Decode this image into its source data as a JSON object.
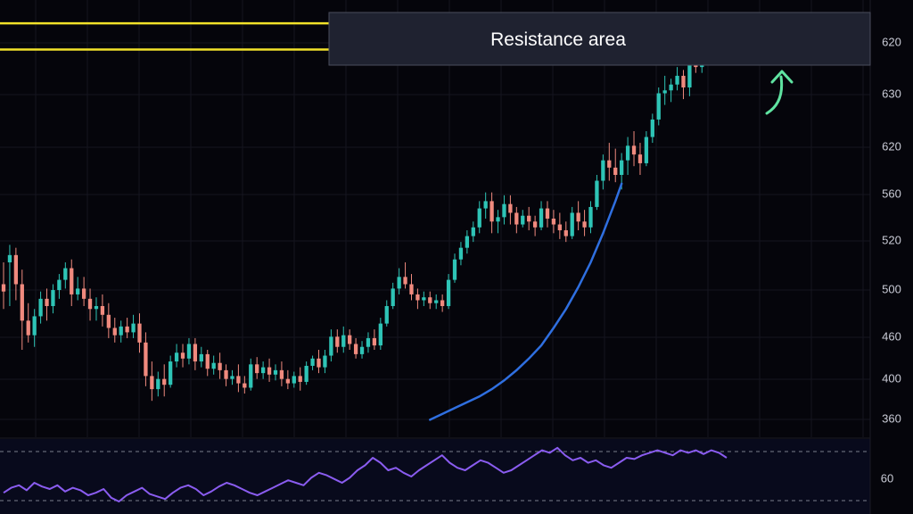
{
  "chart_data": [
    {
      "type": "candlestick",
      "title": "",
      "xlabel": "",
      "ylabel": "",
      "price_ticks": [
        620,
        630,
        620,
        560,
        520,
        500,
        460,
        400,
        360
      ],
      "resistance_levels": [
        634,
        616
      ],
      "annotation": "Resistance area",
      "colors": {
        "up": "#2ec4b6",
        "down": "#f08a7e",
        "resistance": "#f2e22a",
        "trend": "#2f6fe0",
        "arrow": "#5fe3a1",
        "background": "#05050b",
        "grid": "#15151f"
      },
      "candles": [
        [
          455,
          470,
          450,
          438
        ],
        [
          470,
          482,
          475,
          440
        ],
        [
          475,
          480,
          455,
          444
        ],
        [
          455,
          465,
          430,
          410
        ],
        [
          430,
          442,
          420,
          415
        ],
        [
          420,
          438,
          433,
          412
        ],
        [
          433,
          450,
          445,
          428
        ],
        [
          445,
          452,
          440,
          430
        ],
        [
          440,
          455,
          451,
          435
        ],
        [
          451,
          462,
          458,
          445
        ],
        [
          458,
          470,
          466,
          452
        ],
        [
          466,
          472,
          448,
          440
        ],
        [
          448,
          460,
          452,
          444
        ],
        [
          452,
          460,
          445,
          440
        ],
        [
          445,
          452,
          438,
          430
        ],
        [
          438,
          446,
          440,
          430
        ],
        [
          440,
          448,
          434,
          426
        ],
        [
          434,
          442,
          425,
          418
        ],
        [
          425,
          432,
          420,
          415
        ],
        [
          420,
          430,
          426,
          415
        ],
        [
          426,
          432,
          422,
          418
        ],
        [
          422,
          434,
          428,
          418
        ],
        [
          428,
          435,
          415,
          408
        ],
        [
          415,
          422,
          392,
          385
        ],
        [
          392,
          402,
          383,
          375
        ],
        [
          383,
          395,
          390,
          378
        ],
        [
          390,
          400,
          386,
          378
        ],
        [
          386,
          406,
          402,
          384
        ],
        [
          402,
          414,
          408,
          398
        ],
        [
          408,
          414,
          404,
          398
        ],
        [
          404,
          418,
          414,
          400
        ],
        [
          414,
          418,
          402,
          396
        ],
        [
          402,
          412,
          407,
          398
        ],
        [
          407,
          410,
          397,
          392
        ],
        [
          397,
          406,
          401,
          393
        ],
        [
          401,
          408,
          396,
          390
        ],
        [
          396,
          400,
          390,
          385
        ],
        [
          390,
          396,
          392,
          386
        ],
        [
          392,
          400,
          387,
          381
        ],
        [
          387,
          392,
          384,
          380
        ],
        [
          384,
          404,
          400,
          382
        ],
        [
          400,
          405,
          394,
          390
        ],
        [
          394,
          402,
          398,
          390
        ],
        [
          398,
          404,
          393,
          388
        ],
        [
          393,
          400,
          396,
          389
        ],
        [
          396,
          402,
          390,
          385
        ],
        [
          390,
          396,
          387,
          383
        ],
        [
          387,
          395,
          392,
          384
        ],
        [
          392,
          398,
          388,
          382
        ],
        [
          388,
          402,
          399,
          386
        ],
        [
          399,
          406,
          404,
          396
        ],
        [
          404,
          410,
          398,
          394
        ],
        [
          398,
          410,
          406,
          394
        ],
        [
          406,
          424,
          419,
          402
        ],
        [
          419,
          424,
          412,
          408
        ],
        [
          412,
          426,
          420,
          408
        ],
        [
          420,
          424,
          414,
          410
        ],
        [
          414,
          418,
          407,
          404
        ],
        [
          407,
          416,
          412,
          404
        ],
        [
          412,
          422,
          418,
          408
        ],
        [
          418,
          424,
          413,
          410
        ],
        [
          413,
          432,
          428,
          410
        ],
        [
          428,
          444,
          440,
          426
        ],
        [
          440,
          456,
          452,
          438
        ],
        [
          452,
          466,
          460,
          448
        ],
        [
          460,
          470,
          455,
          452
        ],
        [
          455,
          462,
          448,
          444
        ],
        [
          448,
          452,
          444,
          438
        ],
        [
          444,
          450,
          446,
          440
        ],
        [
          446,
          450,
          442,
          438
        ],
        [
          442,
          448,
          444,
          438
        ],
        [
          444,
          448,
          440,
          436
        ],
        [
          440,
          462,
          458,
          438
        ],
        [
          458,
          476,
          472,
          456
        ],
        [
          472,
          484,
          480,
          468
        ],
        [
          480,
          492,
          488,
          476
        ],
        [
          488,
          498,
          494,
          484
        ],
        [
          494,
          512,
          507,
          490
        ],
        [
          507,
          518,
          512,
          500
        ],
        [
          512,
          518,
          498,
          490
        ],
        [
          498,
          506,
          501,
          490
        ],
        [
          501,
          516,
          510,
          496
        ],
        [
          510,
          516,
          504,
          496
        ],
        [
          504,
          508,
          496,
          490
        ],
        [
          496,
          506,
          502,
          494
        ],
        [
          502,
          508,
          498,
          492
        ],
        [
          498,
          502,
          494,
          488
        ],
        [
          494,
          512,
          507,
          492
        ],
        [
          507,
          512,
          500,
          494
        ],
        [
          500,
          506,
          496,
          490
        ],
        [
          496,
          504,
          492,
          486
        ],
        [
          492,
          498,
          488,
          484
        ],
        [
          488,
          508,
          504,
          486
        ],
        [
          504,
          512,
          498,
          492
        ],
        [
          498,
          506,
          494,
          488
        ],
        [
          494,
          512,
          508,
          490
        ],
        [
          508,
          530,
          526,
          506
        ],
        [
          526,
          544,
          540,
          520
        ],
        [
          540,
          552,
          535,
          526
        ],
        [
          535,
          548,
          530,
          525
        ],
        [
          530,
          545,
          540,
          520
        ],
        [
          540,
          556,
          550,
          530
        ],
        [
          550,
          560,
          544,
          536
        ],
        [
          544,
          552,
          538,
          530
        ],
        [
          538,
          560,
          556,
          536
        ],
        [
          556,
          572,
          568,
          552
        ],
        [
          568,
          590,
          586,
          564
        ],
        [
          586,
          598,
          588,
          578
        ],
        [
          588,
          596,
          592,
          580
        ],
        [
          592,
          604,
          598,
          588
        ],
        [
          598,
          602,
          590,
          582
        ],
        [
          590,
          620,
          616,
          584
        ],
        [
          616,
          624,
          604,
          600
        ],
        [
          604,
          622,
          618,
          600
        ],
        [
          618,
          624,
          612,
          606
        ],
        [
          612,
          632,
          628,
          610
        ],
        [
          628,
          640,
          633,
          616
        ],
        [
          633,
          636,
          626,
          618
        ]
      ],
      "trendline": [
        [
          69,
          362
        ],
        [
          71,
          366
        ],
        [
          73,
          370
        ],
        [
          75,
          374
        ],
        [
          77,
          378
        ],
        [
          79,
          383
        ],
        [
          81,
          389
        ],
        [
          83,
          396
        ],
        [
          85,
          404
        ],
        [
          87,
          413
        ],
        [
          89,
          425
        ],
        [
          91,
          438
        ],
        [
          93,
          453
        ],
        [
          95,
          470
        ],
        [
          97,
          490
        ],
        [
          99,
          512
        ],
        [
          100,
          524
        ]
      ],
      "oscillator": {
        "ticks": [
          60
        ],
        "upper_band": 85,
        "lower_band": 60,
        "values": [
          52,
          56,
          58,
          54,
          60,
          57,
          55,
          58,
          53,
          56,
          54,
          50,
          52,
          55,
          48,
          45,
          50,
          53,
          56,
          51,
          49,
          47,
          52,
          56,
          58,
          55,
          50,
          53,
          57,
          60,
          58,
          55,
          52,
          50,
          53,
          56,
          59,
          62,
          60,
          58,
          64,
          68,
          66,
          63,
          60,
          64,
          70,
          74,
          80,
          76,
          70,
          72,
          68,
          65,
          70,
          74,
          78,
          82,
          76,
          72,
          70,
          74,
          78,
          76,
          72,
          68,
          70,
          74,
          78,
          82,
          86,
          84,
          88,
          82,
          78,
          80,
          76,
          78,
          74,
          72,
          76,
          80,
          79,
          82,
          84,
          86,
          84,
          82,
          86,
          84,
          86,
          83,
          86,
          84,
          80
        ]
      }
    }
  ]
}
